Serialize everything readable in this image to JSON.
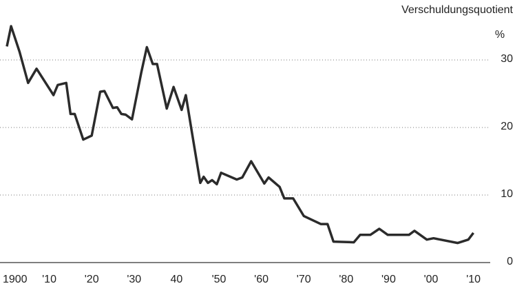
{
  "chart_data": {
    "type": "line",
    "y_axis_label": "Verschuldungsquotient",
    "y_unit": "%",
    "x": [
      1900,
      1901,
      1903,
      1905,
      1907,
      1911,
      1912,
      1914,
      1915,
      1916,
      1918,
      1920,
      1922,
      1923,
      1925,
      1926,
      1927,
      1928,
      1929.5,
      1931.7,
      1933,
      1934.4,
      1935.4,
      1937.7,
      1939.3,
      1941.2,
      1942.2,
      1943.7,
      1945.6,
      1946.4,
      1947.4,
      1948.4,
      1949.5,
      1950.5,
      1954.2,
      1955.5,
      1957.6,
      1960.7,
      1961.7,
      1964.3,
      1965.4,
      1967.5,
      1970,
      1974,
      1975.6,
      1977,
      1981.8,
      1983.3,
      1985.7,
      1987.8,
      1989.8,
      1994.8,
      1996.1,
      1999,
      2000.6,
      2006.3,
      2008.8,
      2010
    ],
    "series": [
      {
        "name": "Verschuldungsquotient",
        "color": "#2b2b2b",
        "values": [
          32,
          35,
          31.2,
          26.6,
          28.7,
          24.8,
          26.3,
          26.6,
          22,
          22,
          18.2,
          18.8,
          25.3,
          25.4,
          22.9,
          23,
          22,
          21.9,
          21.2,
          28.2,
          31.9,
          29.4,
          29.4,
          22.8,
          26,
          22.6,
          24.8,
          19,
          11.8,
          12.7,
          11.8,
          12.2,
          11.6,
          13.3,
          12.3,
          12.6,
          15,
          11.7,
          12.6,
          11.2,
          9.5,
          9.5,
          6.9,
          5.7,
          5.7,
          3.1,
          3,
          4.1,
          4.1,
          5,
          4.1,
          4.1,
          4.7,
          3.4,
          3.6,
          2.9,
          3.4,
          4.4
        ]
      }
    ],
    "xlim": [
      1899,
      2011
    ],
    "xticks": [
      1900,
      {
        "value": 1910,
        "label": "'10"
      },
      {
        "value": 1920,
        "label": "'20"
      },
      {
        "value": 1930,
        "label": "'30"
      },
      {
        "value": 1940,
        "label": "40"
      },
      {
        "value": 1950,
        "label": "'50"
      },
      {
        "value": 1960,
        "label": "'60"
      },
      {
        "value": 1970,
        "label": "'70"
      },
      {
        "value": 1980,
        "label": "'80"
      },
      {
        "value": 1990,
        "label": "'90"
      },
      {
        "value": 2000,
        "label": "'00"
      },
      {
        "value": 2010,
        "label": "'10"
      }
    ],
    "ylim": [
      0,
      35
    ],
    "yticks": [
      0,
      10,
      20,
      30
    ],
    "grid": true
  }
}
